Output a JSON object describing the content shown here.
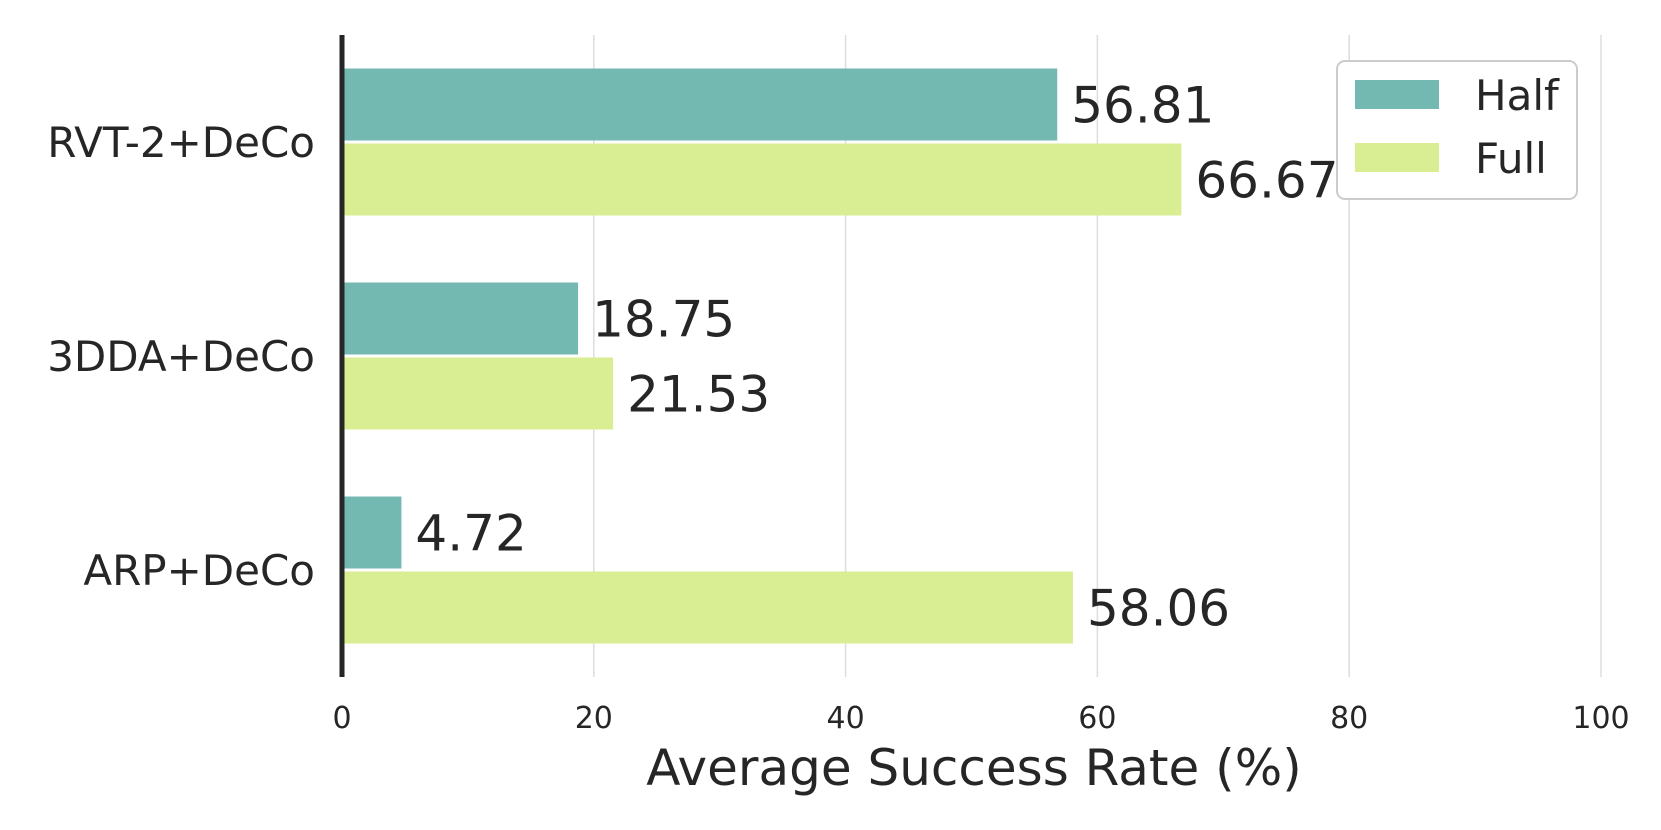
{
  "chart_data": {
    "type": "bar",
    "orientation": "horizontal",
    "categories": [
      "RVT-2+DeCo",
      "3DDA+DeCo",
      "ARP+DeCo"
    ],
    "series": [
      {
        "name": "Half",
        "values": [
          56.81,
          18.75,
          4.72
        ],
        "color": "#74b8b2"
      },
      {
        "name": "Full",
        "values": [
          66.67,
          21.53,
          58.06
        ],
        "color": "#d9ee93"
      }
    ],
    "value_labels": [
      [
        "56.81",
        "18.75",
        "4.72"
      ],
      [
        "66.67",
        "21.53",
        "58.06"
      ]
    ],
    "xlabel": "Average Success Rate (%)",
    "ylabel": "",
    "xlim": [
      0,
      100
    ],
    "xticks": [
      0,
      20,
      40,
      60,
      80,
      100
    ],
    "xtick_labels": [
      "0",
      "20",
      "40",
      "60",
      "80",
      "100"
    ],
    "grid": "vertical",
    "legend_position": "top-right",
    "colors": {
      "grid": "#dddddd",
      "axis": "#262626",
      "text": "#262626",
      "legend_border": "#cccccc"
    }
  }
}
